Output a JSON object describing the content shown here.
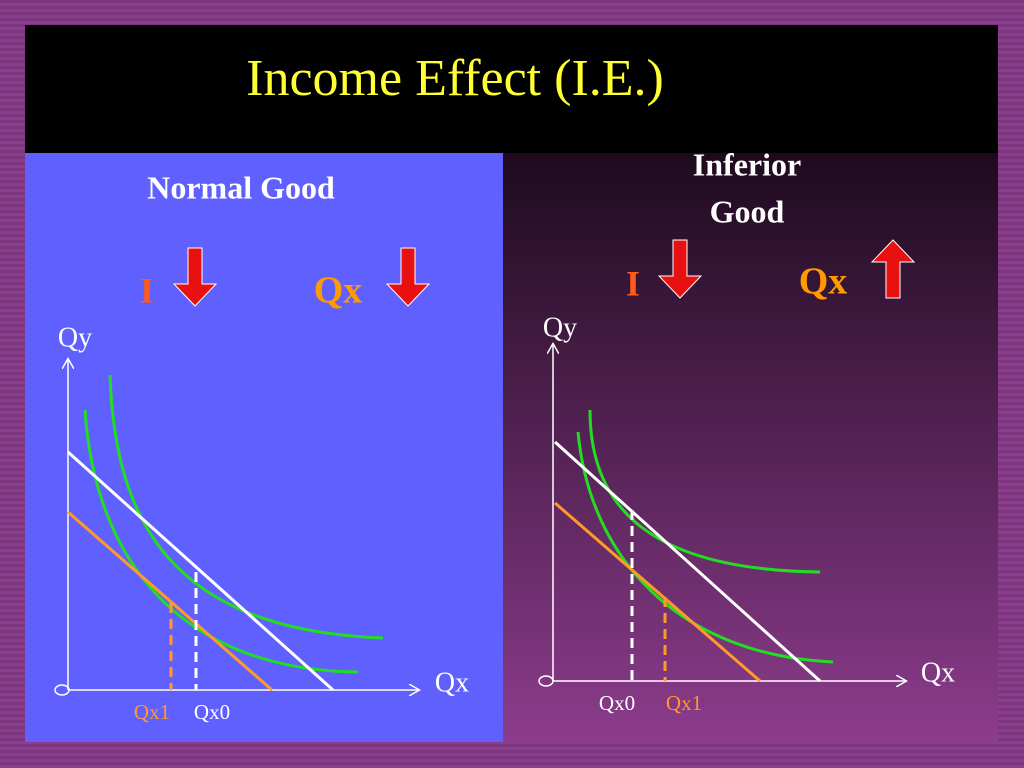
{
  "title": "Income Effect  (I.E.)",
  "left_panel": {
    "heading": "Normal Good",
    "income_label": "I",
    "quantity_label": "Qx",
    "y_axis_label": "Qy",
    "x_axis_label": "Qx",
    "point_labels": [
      "Qx1",
      "Qx0"
    ]
  },
  "right_panel": {
    "heading_lines": [
      "Inferior",
      "Good"
    ],
    "income_label": "I",
    "quantity_label": "Qx",
    "y_axis_label": "Qy",
    "x_axis_label": "Qx",
    "point_labels": [
      "Qx0",
      "Qx1"
    ]
  }
}
